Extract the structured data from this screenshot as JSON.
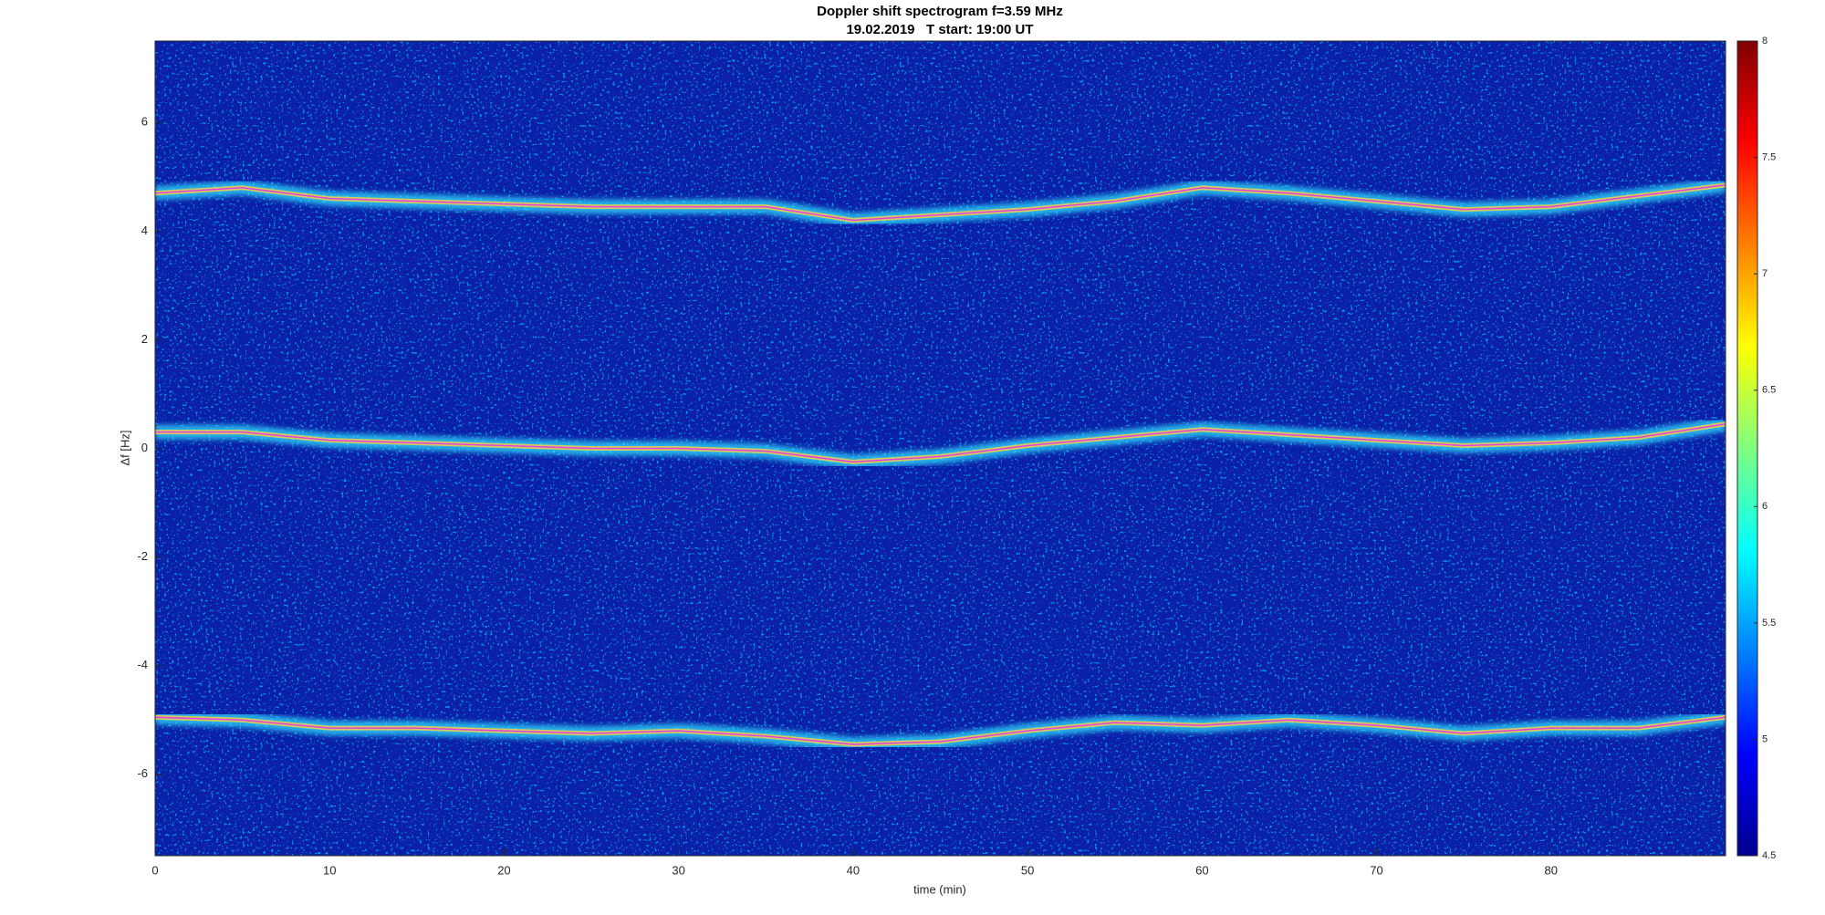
{
  "chart_data": {
    "type": "spectrogram",
    "title": "Doppler shift spectrogram f=3.59 MHz",
    "subtitle": "19.02.2019   T start: 19:00 UT",
    "xlabel": "time (min)",
    "ylabel": "Δf [Hz]",
    "x": [
      0,
      5,
      10,
      15,
      20,
      25,
      30,
      35,
      40,
      45,
      50,
      55,
      60,
      65,
      70,
      75,
      80,
      85,
      90
    ],
    "series": [
      {
        "color": "#e040e0",
        "values": [
          4.7,
          4.8,
          4.6,
          4.55,
          4.5,
          4.45,
          4.45,
          4.45,
          4.2,
          4.3,
          4.4,
          4.55,
          4.8,
          4.7,
          4.55,
          4.4,
          4.45,
          4.65,
          4.85
        ]
      },
      {
        "color": "#e040e0",
        "values": [
          0.3,
          0.3,
          0.15,
          0.1,
          0.05,
          0,
          0,
          -0.05,
          -0.25,
          -0.15,
          0.05,
          0.2,
          0.35,
          0.25,
          0.15,
          0.05,
          0.1,
          0.2,
          0.45
        ]
      },
      {
        "color": "#e040e0",
        "values": [
          -4.95,
          -5,
          -5.15,
          -5.15,
          -5.2,
          -5.25,
          -5.2,
          -5.3,
          -5.45,
          -5.4,
          -5.2,
          -5.05,
          -5.1,
          -5,
          -5.1,
          -5.25,
          -5.15,
          -5.15,
          -4.95
        ]
      }
    ],
    "xlim": [
      0,
      90
    ],
    "xticks": [
      0,
      10,
      20,
      30,
      40,
      50,
      60,
      70,
      80
    ],
    "ylim": [
      -7.5,
      7.5
    ],
    "yticks": [
      -6,
      -4,
      -2,
      0,
      2,
      4,
      6
    ],
    "background": "#0b20a8",
    "colorbar": {
      "lim": [
        4.5,
        8
      ],
      "ticks": [
        4.5,
        5,
        5.5,
        6,
        6.5,
        7,
        7.5,
        8
      ],
      "colormap": "jet"
    }
  }
}
